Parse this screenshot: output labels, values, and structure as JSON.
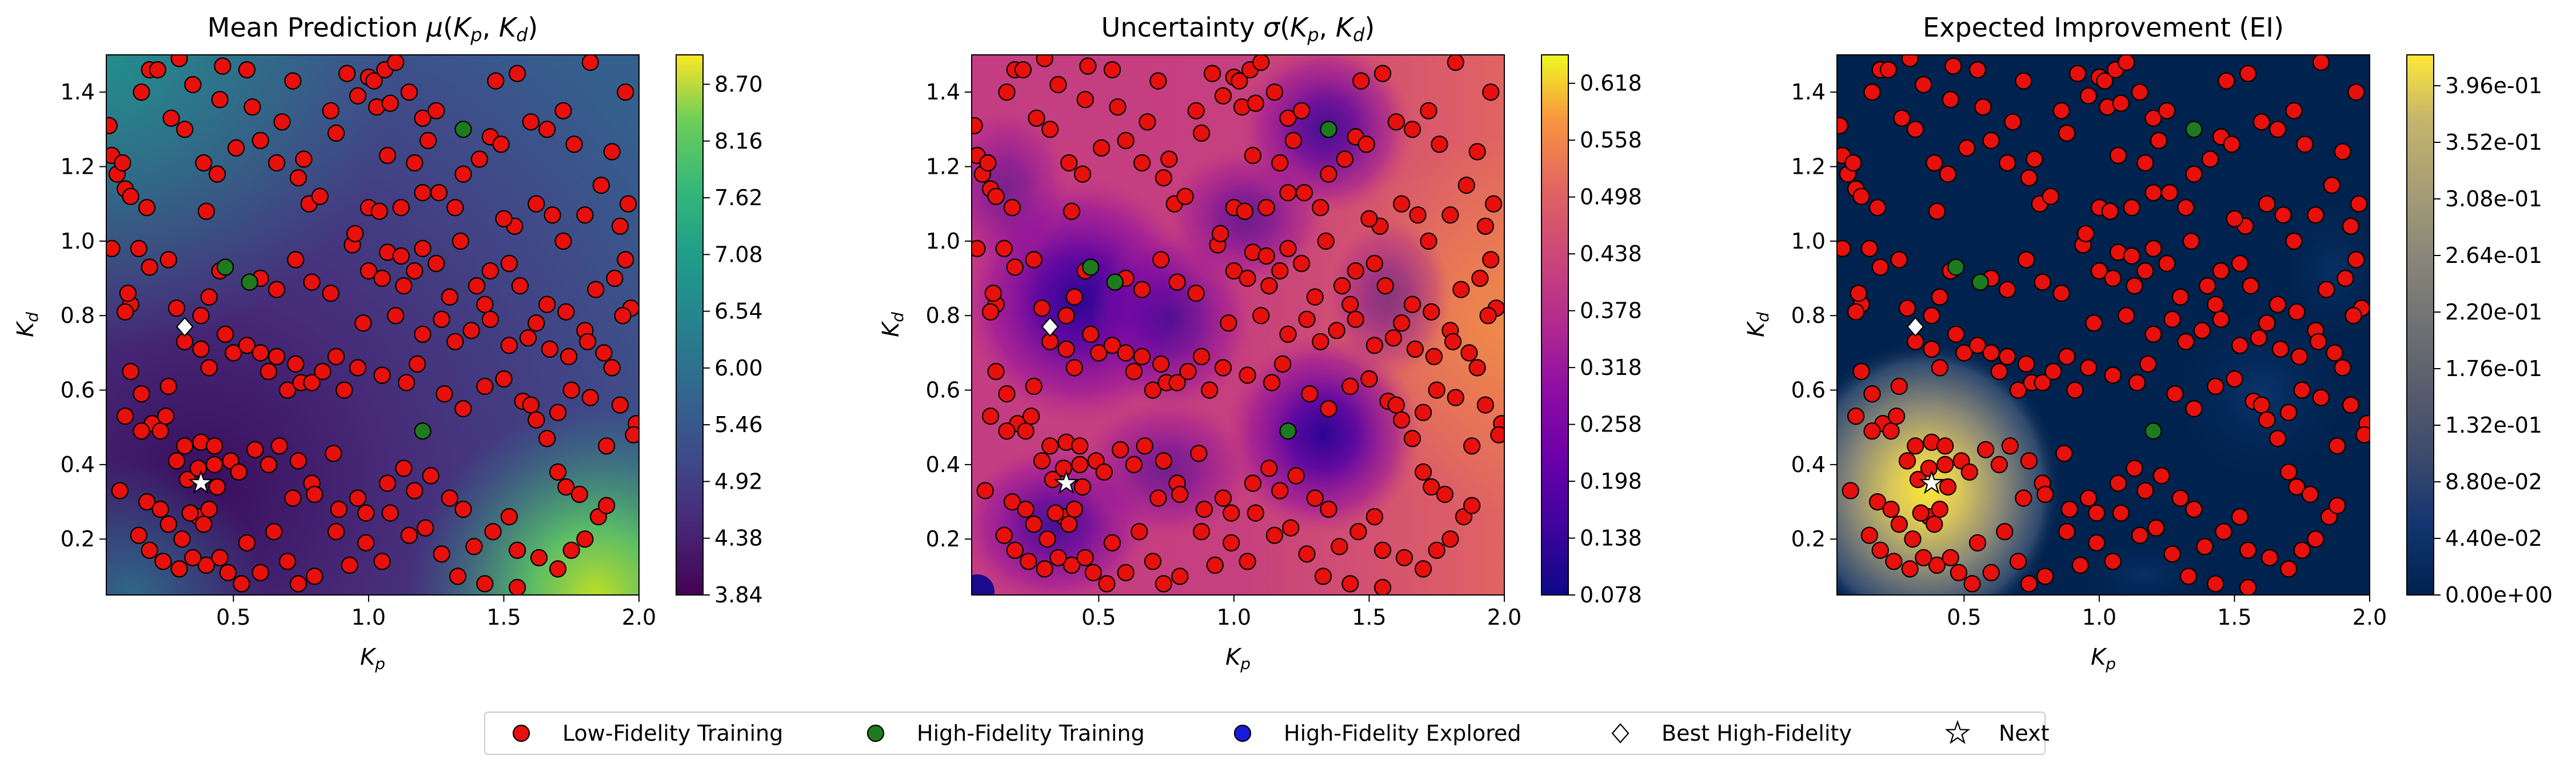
{
  "figure": {
    "legend": {
      "placement": "bottom-center",
      "entries": [
        {
          "label": "Low-Fidelity Training",
          "marker": "circle",
          "color": "#e8100c"
        },
        {
          "label": "High-Fidelity Training",
          "marker": "circle",
          "color": "#1e7a1e"
        },
        {
          "label": "High-Fidelity Explored",
          "marker": "circle",
          "color": "#1a1adb"
        },
        {
          "label": "Best High-Fidelity",
          "marker": "diamond",
          "color": "#ffffff"
        },
        {
          "label": "Next",
          "marker": "star",
          "color": "#ffffff"
        }
      ]
    }
  },
  "chart_data": [
    {
      "type": "heatmap",
      "title": "Mean Prediction μ(Kp, Kd)",
      "xlabel": "Kp",
      "ylabel": "Kd",
      "xlim": [
        0.03,
        2.0
      ],
      "ylim": [
        0.05,
        1.5
      ],
      "xticks": [
        "0.5",
        "1.0",
        "1.5",
        "2.0"
      ],
      "yticks": [
        "0.2",
        "0.4",
        "0.6",
        "0.8",
        "1.0",
        "1.2",
        "1.4"
      ],
      "colormap": "viridis",
      "colorbar": {
        "min": 3.84,
        "max": 8.98,
        "ticks": [
          "3.84",
          "4.38",
          "4.92",
          "5.46",
          "6.00",
          "6.54",
          "7.08",
          "7.62",
          "8.16",
          "8.70"
        ]
      }
    },
    {
      "type": "heatmap",
      "title": "Uncertainty σ(Kp, Kd)",
      "xlabel": "Kp",
      "ylabel": "Kd",
      "xlim": [
        0.03,
        2.0
      ],
      "ylim": [
        0.05,
        1.5
      ],
      "xticks": [
        "0.5",
        "1.0",
        "1.5",
        "2.0"
      ],
      "yticks": [
        "0.2",
        "0.4",
        "0.6",
        "0.8",
        "1.0",
        "1.2",
        "1.4"
      ],
      "colormap": "plasma",
      "colorbar": {
        "min": 0.078,
        "max": 0.648,
        "ticks": [
          "0.078",
          "0.138",
          "0.198",
          "0.258",
          "0.318",
          "0.378",
          "0.438",
          "0.498",
          "0.558",
          "0.618"
        ]
      }
    },
    {
      "type": "heatmap",
      "title": "Expected Improvement (EI)",
      "xlabel": "Kp",
      "ylabel": "Kd",
      "xlim": [
        0.03,
        2.0
      ],
      "ylim": [
        0.05,
        1.5
      ],
      "xticks": [
        "0.5",
        "1.0",
        "1.5",
        "2.0"
      ],
      "yticks": [
        "0.2",
        "0.4",
        "0.6",
        "0.8",
        "1.0",
        "1.2",
        "1.4"
      ],
      "colormap": "cividis",
      "colorbar": {
        "min": 0.0,
        "max": 0.42,
        "ticks": [
          "0.00e+00",
          "4.40e-02",
          "8.80e-02",
          "1.32e-01",
          "1.76e-01",
          "2.20e-01",
          "2.64e-01",
          "3.08e-01",
          "3.52e-01",
          "3.96e-01"
        ]
      }
    }
  ],
  "points": {
    "low_fidelity": [
      [
        0.04,
        1.31
      ],
      [
        0.05,
        1.23
      ],
      [
        0.07,
        1.18
      ],
      [
        0.1,
        1.14
      ],
      [
        0.12,
        1.12
      ],
      [
        0.18,
        1.09
      ],
      [
        0.09,
        1.21
      ],
      [
        0.16,
        1.4
      ],
      [
        0.19,
        1.46
      ],
      [
        0.22,
        1.46
      ],
      [
        0.3,
        1.49
      ],
      [
        0.27,
        1.33
      ],
      [
        0.32,
        1.3
      ],
      [
        0.35,
        1.42
      ],
      [
        0.39,
        1.21
      ],
      [
        0.4,
        1.08
      ],
      [
        0.44,
        1.18
      ],
      [
        0.45,
        1.38
      ],
      [
        0.46,
        1.47
      ],
      [
        0.51,
        1.25
      ],
      [
        0.55,
        1.46
      ],
      [
        0.57,
        1.36
      ],
      [
        0.6,
        1.27
      ],
      [
        0.66,
        1.21
      ],
      [
        0.68,
        1.32
      ],
      [
        0.72,
        1.43
      ],
      [
        0.76,
        1.22
      ],
      [
        0.74,
        1.17
      ],
      [
        0.78,
        1.1
      ],
      [
        0.82,
        1.12
      ],
      [
        0.86,
        1.35
      ],
      [
        0.88,
        1.29
      ],
      [
        0.92,
        1.45
      ],
      [
        0.96,
        1.39
      ],
      [
        1.0,
        1.44
      ],
      [
        1.02,
        1.43
      ],
      [
        1.06,
        1.46
      ],
      [
        1.1,
        1.48
      ],
      [
        1.03,
        1.36
      ],
      [
        1.08,
        1.37
      ],
      [
        1.15,
        1.4
      ],
      [
        1.2,
        1.33
      ],
      [
        1.25,
        1.35
      ],
      [
        1.22,
        1.27
      ],
      [
        1.17,
        1.21
      ],
      [
        1.07,
        1.23
      ],
      [
        1.0,
        1.09
      ],
      [
        1.04,
        1.08
      ],
      [
        1.12,
        1.09
      ],
      [
        1.2,
        1.13
      ],
      [
        1.26,
        1.13
      ],
      [
        1.32,
        1.09
      ],
      [
        1.35,
        1.18
      ],
      [
        1.41,
        1.22
      ],
      [
        1.45,
        1.28
      ],
      [
        1.49,
        1.26
      ],
      [
        1.47,
        1.43
      ],
      [
        1.55,
        1.45
      ],
      [
        1.6,
        1.32
      ],
      [
        1.66,
        1.3
      ],
      [
        1.72,
        1.35
      ],
      [
        1.76,
        1.26
      ],
      [
        1.82,
        1.48
      ],
      [
        1.95,
        1.4
      ],
      [
        1.9,
        1.24
      ],
      [
        1.86,
        1.15
      ],
      [
        1.8,
        1.07
      ],
      [
        1.96,
        1.1
      ],
      [
        1.93,
        1.04
      ],
      [
        1.54,
        1.04
      ],
      [
        1.5,
        1.06
      ],
      [
        1.62,
        1.1
      ],
      [
        1.68,
        1.07
      ],
      [
        1.72,
        1.0
      ],
      [
        0.05,
        0.98
      ],
      [
        0.15,
        0.98
      ],
      [
        0.19,
        0.93
      ],
      [
        0.26,
        0.95
      ],
      [
        0.12,
        0.83
      ],
      [
        0.1,
        0.81
      ],
      [
        0.11,
        0.86
      ],
      [
        0.29,
        0.82
      ],
      [
        0.38,
        0.8
      ],
      [
        0.41,
        0.85
      ],
      [
        0.45,
        0.92
      ],
      [
        0.6,
        0.9
      ],
      [
        0.66,
        0.87
      ],
      [
        0.73,
        0.95
      ],
      [
        0.79,
        0.89
      ],
      [
        0.86,
        0.86
      ],
      [
        0.94,
        0.99
      ],
      [
        0.95,
        1.02
      ],
      [
        1.0,
        0.92
      ],
      [
        1.05,
        0.9
      ],
      [
        1.07,
        0.97
      ],
      [
        1.12,
        0.96
      ],
      [
        1.17,
        0.92
      ],
      [
        1.2,
        0.98
      ],
      [
        1.25,
        0.94
      ],
      [
        1.3,
        0.85
      ],
      [
        1.34,
        1.0
      ],
      [
        1.4,
        0.88
      ],
      [
        1.43,
        0.83
      ],
      [
        1.45,
        0.92
      ],
      [
        1.52,
        0.94
      ],
      [
        1.56,
        0.88
      ],
      [
        1.62,
        0.78
      ],
      [
        1.66,
        0.83
      ],
      [
        1.73,
        0.81
      ],
      [
        1.8,
        0.76
      ],
      [
        1.84,
        0.87
      ],
      [
        1.91,
        0.9
      ],
      [
        1.95,
        0.95
      ],
      [
        1.97,
        0.82
      ],
      [
        1.94,
        0.8
      ],
      [
        0.98,
        0.78
      ],
      [
        1.1,
        0.8
      ],
      [
        1.13,
        0.88
      ],
      [
        1.2,
        0.75
      ],
      [
        1.27,
        0.79
      ],
      [
        1.32,
        0.73
      ],
      [
        1.38,
        0.76
      ],
      [
        1.45,
        0.79
      ],
      [
        1.52,
        0.72
      ],
      [
        1.59,
        0.74
      ],
      [
        1.67,
        0.71
      ],
      [
        1.74,
        0.69
      ],
      [
        1.81,
        0.73
      ],
      [
        1.87,
        0.7
      ],
      [
        1.9,
        0.66
      ],
      [
        0.32,
        0.73
      ],
      [
        0.38,
        0.71
      ],
      [
        0.41,
        0.66
      ],
      [
        0.47,
        0.75
      ],
      [
        0.5,
        0.7
      ],
      [
        0.55,
        0.72
      ],
      [
        0.6,
        0.7
      ],
      [
        0.63,
        0.65
      ],
      [
        0.66,
        0.69
      ],
      [
        0.7,
        0.6
      ],
      [
        0.73,
        0.67
      ],
      [
        0.75,
        0.62
      ],
      [
        0.79,
        0.62
      ],
      [
        0.83,
        0.65
      ],
      [
        0.88,
        0.69
      ],
      [
        0.91,
        0.6
      ],
      [
        0.96,
        0.66
      ],
      [
        1.05,
        0.64
      ],
      [
        1.14,
        0.62
      ],
      [
        1.18,
        0.67
      ],
      [
        1.28,
        0.59
      ],
      [
        1.35,
        0.55
      ],
      [
        1.43,
        0.61
      ],
      [
        1.5,
        0.63
      ],
      [
        1.57,
        0.57
      ],
      [
        1.6,
        0.56
      ],
      [
        1.62,
        0.52
      ],
      [
        1.66,
        0.47
      ],
      [
        1.7,
        0.54
      ],
      [
        1.75,
        0.6
      ],
      [
        1.82,
        0.58
      ],
      [
        1.93,
        0.56
      ],
      [
        1.99,
        0.51
      ],
      [
        1.98,
        0.48
      ],
      [
        1.88,
        0.45
      ],
      [
        1.7,
        0.38
      ],
      [
        1.73,
        0.34
      ],
      [
        1.78,
        0.32
      ],
      [
        1.85,
        0.26
      ],
      [
        1.88,
        0.29
      ],
      [
        0.12,
        0.65
      ],
      [
        0.16,
        0.59
      ],
      [
        0.1,
        0.53
      ],
      [
        0.2,
        0.51
      ],
      [
        0.23,
        0.49
      ],
      [
        0.25,
        0.53
      ],
      [
        0.26,
        0.61
      ],
      [
        0.16,
        0.49
      ],
      [
        0.38,
        0.46
      ],
      [
        0.43,
        0.45
      ],
      [
        0.49,
        0.41
      ],
      [
        0.52,
        0.38
      ],
      [
        0.58,
        0.44
      ],
      [
        0.63,
        0.4
      ],
      [
        0.67,
        0.45
      ],
      [
        0.74,
        0.41
      ],
      [
        0.87,
        0.43
      ],
      [
        0.79,
        0.35
      ],
      [
        0.8,
        0.32
      ],
      [
        0.89,
        0.28
      ],
      [
        0.96,
        0.31
      ],
      [
        0.99,
        0.27
      ],
      [
        1.07,
        0.35
      ],
      [
        1.13,
        0.39
      ],
      [
        1.17,
        0.33
      ],
      [
        1.23,
        0.37
      ],
      [
        1.3,
        0.31
      ],
      [
        1.35,
        0.28
      ],
      [
        1.21,
        0.23
      ],
      [
        1.15,
        0.21
      ],
      [
        1.27,
        0.16
      ],
      [
        1.39,
        0.18
      ],
      [
        1.46,
        0.22
      ],
      [
        1.52,
        0.26
      ],
      [
        1.55,
        0.17
      ],
      [
        1.63,
        0.15
      ],
      [
        1.7,
        0.12
      ],
      [
        1.75,
        0.17
      ],
      [
        1.8,
        0.2
      ],
      [
        1.43,
        0.08
      ],
      [
        1.55,
        0.07
      ],
      [
        1.33,
        0.1
      ],
      [
        1.05,
        0.14
      ],
      [
        0.93,
        0.13
      ],
      [
        0.8,
        0.1
      ],
      [
        0.74,
        0.08
      ],
      [
        0.7,
        0.14
      ],
      [
        0.6,
        0.11
      ],
      [
        0.53,
        0.08
      ],
      [
        0.48,
        0.11
      ],
      [
        0.4,
        0.13
      ],
      [
        0.35,
        0.15
      ],
      [
        0.3,
        0.12
      ],
      [
        0.24,
        0.14
      ],
      [
        0.19,
        0.17
      ],
      [
        0.15,
        0.21
      ],
      [
        0.08,
        0.33
      ],
      [
        0.18,
        0.3
      ],
      [
        0.23,
        0.28
      ],
      [
        0.26,
        0.24
      ],
      [
        0.31,
        0.2
      ],
      [
        0.37,
        0.26
      ],
      [
        0.41,
        0.28
      ],
      [
        0.34,
        0.27
      ],
      [
        0.39,
        0.24
      ],
      [
        0.44,
        0.34
      ],
      [
        0.33,
        0.36
      ],
      [
        0.45,
        0.15
      ],
      [
        0.55,
        0.19
      ],
      [
        0.65,
        0.22
      ],
      [
        0.72,
        0.31
      ],
      [
        0.88,
        0.22
      ],
      [
        0.99,
        0.19
      ],
      [
        1.08,
        0.27
      ],
      [
        0.29,
        0.41
      ],
      [
        0.32,
        0.45
      ],
      [
        0.37,
        0.39
      ],
      [
        0.43,
        0.4
      ]
    ],
    "high_fidelity": [
      [
        0.47,
        0.93
      ],
      [
        0.56,
        0.89
      ],
      [
        1.2,
        0.49
      ],
      [
        1.35,
        1.3
      ]
    ],
    "best": [
      0.32,
      0.77
    ],
    "next": [
      0.38,
      0.35
    ]
  }
}
